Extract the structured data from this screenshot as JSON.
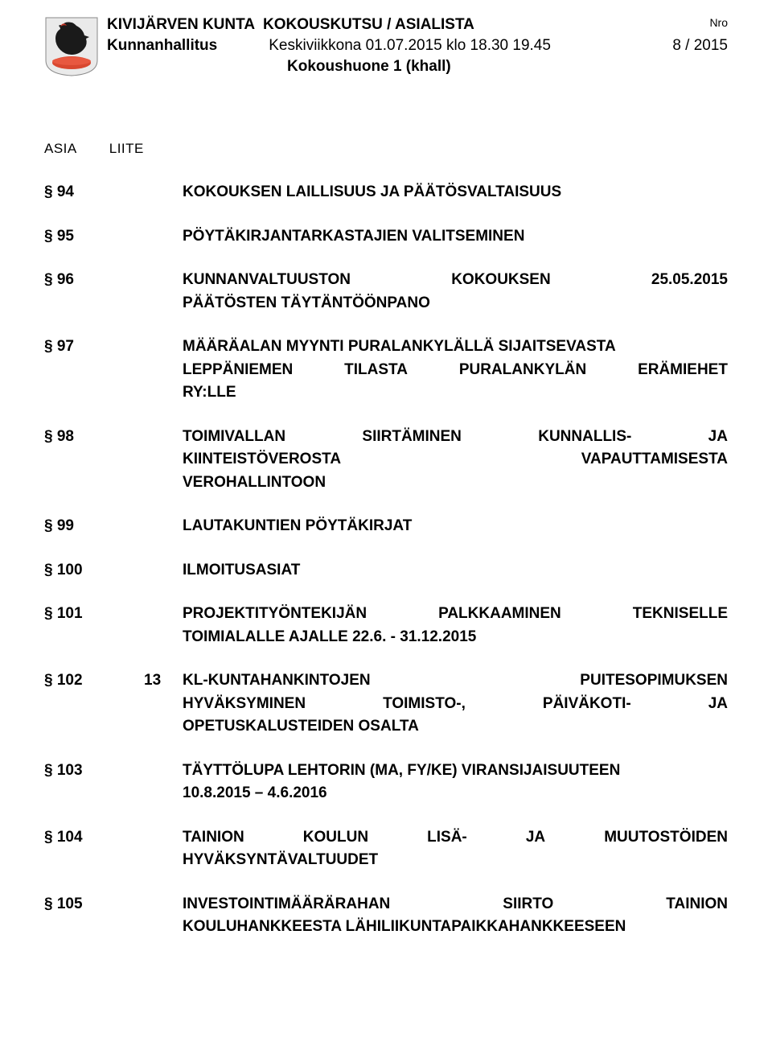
{
  "header": {
    "org": "KIVIJÄRVEN KUNTA",
    "doc_type": "KOKOUSKUTSU / ASIALISTA",
    "nro_label": "Nro",
    "board": "Kunnanhallitus",
    "date": "Keskiviikkona 01.07.2015 klo 18.30 19.45",
    "page": "8 / 2015",
    "room": "Kokoushuone 1 (khall)"
  },
  "section_labels": {
    "asia": "ASIA",
    "liite": "LIITE"
  },
  "items": [
    {
      "num": "§ 94",
      "liite": "",
      "text": "KOKOUKSEN LAILLISUUS JA PÄÄTÖSVALTAISUUS",
      "justify": false
    },
    {
      "num": "§ 95",
      "liite": "",
      "text": "PÖYTÄKIRJANTARKASTAJIEN VALITSEMINEN",
      "justify": false
    },
    {
      "num": "§ 96",
      "liite": "",
      "lines": [
        [
          "KUNNANVALTUUSTON",
          "KOKOUKSEN",
          "25.05.2015"
        ],
        [
          "PÄÄTÖSTEN TÄYTÄNTÖÖNPANO"
        ]
      ],
      "justify": true
    },
    {
      "num": "§ 97",
      "liite": "",
      "lines": [
        [
          "MÄÄRÄALAN MYYNTI PURALANKYLÄLLÄ SIJAITSEVASTA"
        ],
        [
          "LEPPÄNIEMEN",
          "TILASTA",
          "PURALANKYLÄN",
          "ERÄMIEHET"
        ],
        [
          "RY:LLE"
        ]
      ],
      "justify": true
    },
    {
      "num": "§ 98",
      "liite": "",
      "lines": [
        [
          "TOIMIVALLAN",
          "SIIRTÄMINEN",
          "KUNNALLIS-",
          "JA"
        ],
        [
          "KIINTEISTÖVEROSTA",
          "VAPAUTTAMISESTA"
        ],
        [
          "VEROHALLINTOON"
        ]
      ],
      "justify": true
    },
    {
      "num": "§ 99",
      "liite": "",
      "text": "LAUTAKUNTIEN PÖYTÄKIRJAT",
      "justify": false
    },
    {
      "num": "§ 100",
      "liite": "",
      "text": "ILMOITUSASIAT",
      "justify": false
    },
    {
      "num": "§ 101",
      "liite": "",
      "lines": [
        [
          "PROJEKTITYÖNTEKIJÄN",
          "PALKKAAMINEN",
          "TEKNISELLE"
        ],
        [
          "TOIMIALALLE AJALLE 22.6. - 31.12.2015"
        ]
      ],
      "justify": true
    },
    {
      "num": "§ 102",
      "liite": "13",
      "lines": [
        [
          "KL-KUNTAHANKINTOJEN",
          "PUITESOPIMUKSEN"
        ],
        [
          "HYVÄKSYMINEN",
          "TOIMISTO-,",
          "PÄIVÄKOTI-",
          "JA"
        ],
        [
          "OPETUSKALUSTEIDEN OSALTA"
        ]
      ],
      "justify": true
    },
    {
      "num": "§ 103",
      "liite": "",
      "lines": [
        [
          "TÄYTTÖLUPA LEHTORIN (MA, FY/KE) VIRANSIJAISUUTEEN"
        ],
        [
          "10.8.2015 – 4.6.2016"
        ]
      ],
      "justify": true
    },
    {
      "num": "§ 104",
      "liite": "",
      "lines": [
        [
          "TAINION",
          "KOULUN",
          "LISÄ-",
          "JA",
          "MUUTOSTÖIDEN"
        ],
        [
          "HYVÄKSYNTÄVALTUUDET"
        ]
      ],
      "justify": true
    },
    {
      "num": "§ 105",
      "liite": "",
      "lines": [
        [
          "INVESTOINTIMÄÄRÄRAHAN",
          "SIIRTO",
          "TAINION"
        ],
        [
          "KOULUHANKKEESTA LÄHILIIKUNTAPAIKKAHANKKEESEEN"
        ]
      ],
      "justify": true
    }
  ],
  "colors": {
    "text": "#000000",
    "background": "#ffffff",
    "logo_rooster": "#1a1a1a",
    "logo_base": "#d94830",
    "logo_bg": "#e8e8e8"
  }
}
